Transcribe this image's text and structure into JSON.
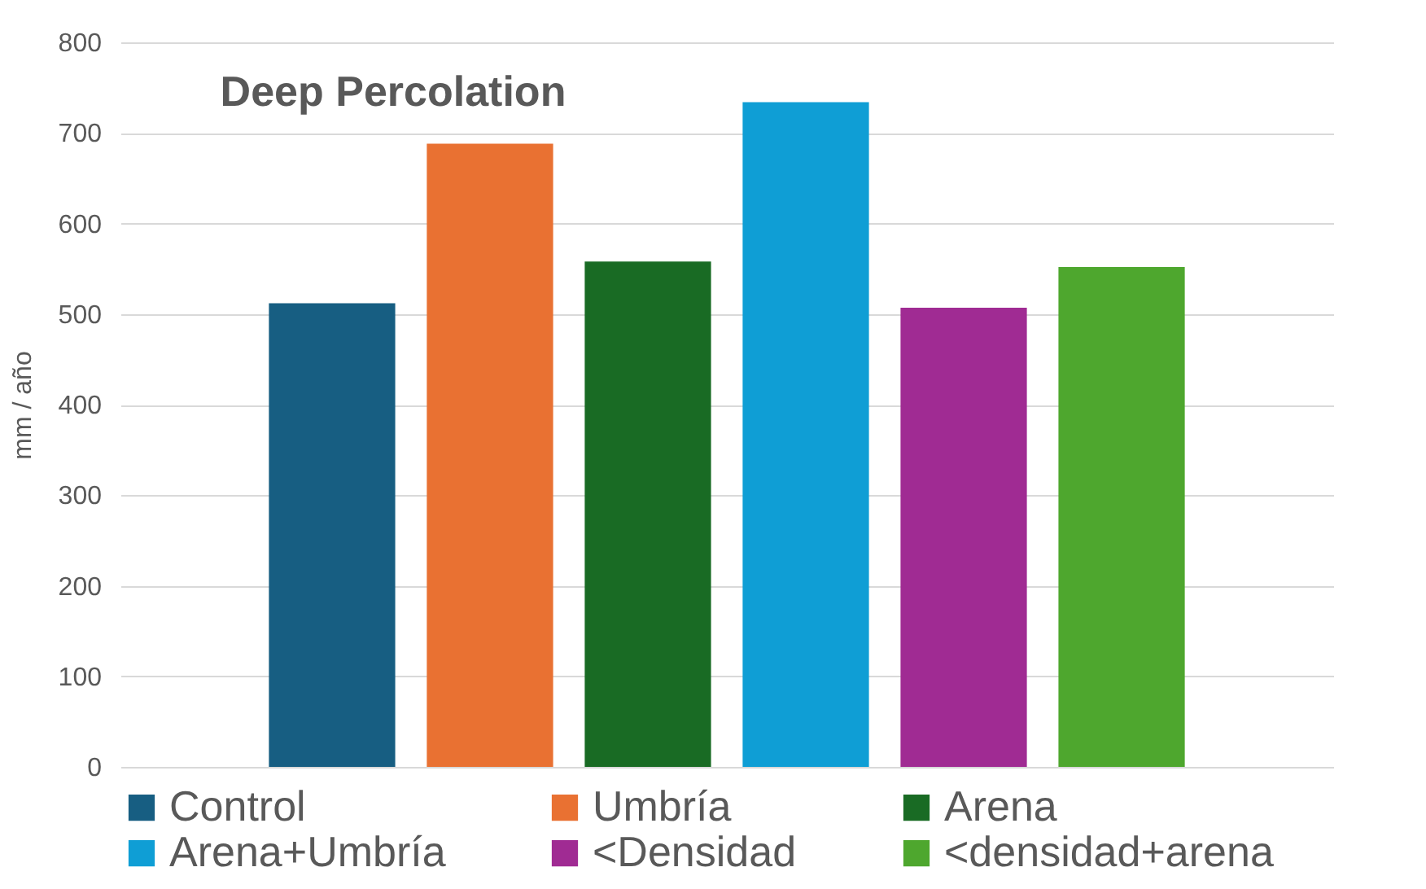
{
  "chart_data": {
    "type": "bar",
    "title": "Deep Percolation",
    "ylabel": "mm / año",
    "categories": [
      null
    ],
    "series": [
      {
        "name": "Control",
        "color": "#175e82",
        "values": [
          512
        ]
      },
      {
        "name": "Umbría",
        "color": "#e97132",
        "values": [
          688
        ]
      },
      {
        "name": "Arena",
        "color": "#196b24",
        "values": [
          558
        ]
      },
      {
        "name": "Arena+Umbría",
        "color": "#0f9ed5",
        "values": [
          734
        ]
      },
      {
        "name": "<Densidad",
        "color": "#a02b93",
        "values": [
          507
        ]
      },
      {
        "name": "<densidad+arena",
        "color": "#4ea72e",
        "values": [
          552
        ]
      }
    ],
    "ylim": [
      0,
      800
    ],
    "yticks": [
      0,
      100,
      200,
      300,
      400,
      500,
      600,
      700,
      800
    ],
    "grid": "y",
    "legend": "bottom"
  }
}
